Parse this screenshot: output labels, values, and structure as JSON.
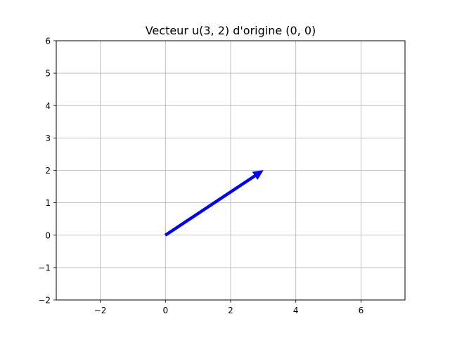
{
  "chart_data": {
    "type": "vector",
    "title": "Vecteur u(3, 2) d'origine (0, 0)",
    "xlabel": "",
    "ylabel": "",
    "xlim": [
      -3.35,
      7.35
    ],
    "ylim": [
      -2,
      6
    ],
    "xticks": [
      -2,
      0,
      2,
      4,
      6
    ],
    "xtick_labels": [
      "−2",
      "0",
      "2",
      "4",
      "6"
    ],
    "yticks": [
      -2,
      -1,
      0,
      1,
      2,
      3,
      4,
      5,
      6
    ],
    "ytick_labels": [
      "−2",
      "−1",
      "0",
      "1",
      "2",
      "3",
      "4",
      "5",
      "6"
    ],
    "grid": true,
    "vectors": [
      {
        "origin": [
          0,
          0
        ],
        "components": [
          3,
          2
        ],
        "color": "#0000ff"
      }
    ]
  },
  "colors": {
    "vector": "#0000ff",
    "grid": "#b0b0b0",
    "axes": "#000000",
    "background": "#ffffff"
  }
}
